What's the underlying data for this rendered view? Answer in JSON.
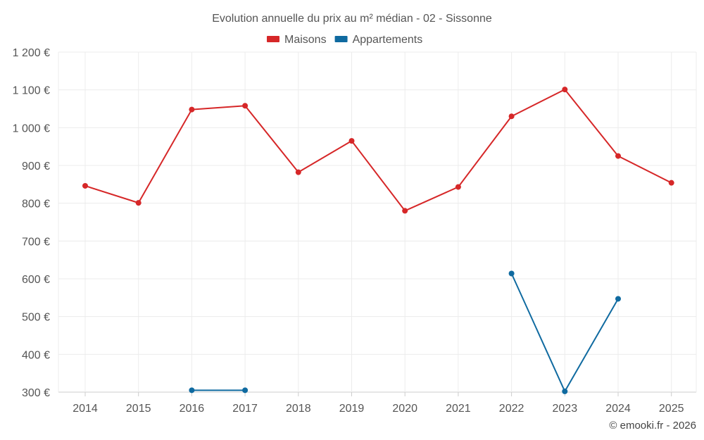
{
  "chart_data": {
    "type": "line",
    "title": "Evolution annuelle du prix au m² médian - 02 - Sissonne",
    "categories": [
      "2014",
      "2015",
      "2016",
      "2017",
      "2018",
      "2019",
      "2020",
      "2021",
      "2022",
      "2023",
      "2024",
      "2025"
    ],
    "series": [
      {
        "name": "Maisons",
        "color": "#d62728",
        "values": [
          846,
          801,
          1048,
          1058,
          882,
          965,
          780,
          843,
          1030,
          1101,
          925,
          854
        ]
      },
      {
        "name": "Appartements",
        "color": "#0f6aa0",
        "values": [
          null,
          null,
          305,
          305,
          null,
          null,
          null,
          null,
          614,
          302,
          547,
          null
        ]
      }
    ],
    "ylim": [
      300,
      1200
    ],
    "yticks": [
      300,
      400,
      500,
      600,
      700,
      800,
      900,
      1000,
      1100,
      1200
    ],
    "ytick_labels": [
      "300 €",
      "400 €",
      "500 €",
      "600 €",
      "700 €",
      "800 €",
      "900 €",
      "1 000 €",
      "1 100 €",
      "1 200 €"
    ],
    "xlabel": "",
    "ylabel": "",
    "grid": true,
    "legend_position": "top-center"
  },
  "credit": "© emooki.fr - 2026"
}
